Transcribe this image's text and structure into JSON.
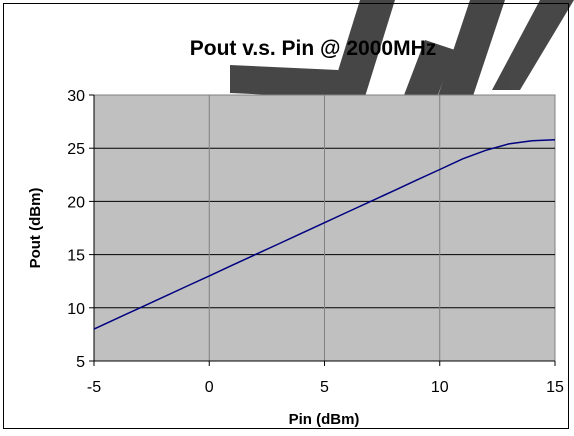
{
  "chart_data": {
    "type": "line",
    "title": "Pout v.s. Pin @ 2000MHz",
    "xlabel": "Pin (dBm)",
    "ylabel": "Pout (dBm)",
    "xlim": [
      -5,
      15
    ],
    "ylim": [
      5,
      30
    ],
    "x_ticks": [
      -5,
      0,
      5,
      10,
      15
    ],
    "y_ticks": [
      5,
      10,
      15,
      20,
      25,
      30
    ],
    "x_tick_labels": [
      "-5",
      "0",
      "5",
      "10",
      "15"
    ],
    "y_tick_labels": [
      "5",
      "10",
      "15",
      "20",
      "25",
      "30"
    ],
    "grid": true,
    "legend": "none",
    "series": [
      {
        "x": [
          -5,
          -4,
          -3,
          -2,
          -1,
          0,
          1,
          2,
          3,
          4,
          5,
          6,
          7,
          8,
          9,
          10,
          11,
          12,
          13,
          14,
          15
        ],
        "y": [
          8,
          9,
          10,
          11,
          12,
          13,
          14,
          15,
          16,
          17,
          18,
          19,
          20,
          21,
          22,
          23,
          24,
          24.8,
          25.4,
          25.7,
          25.8
        ]
      }
    ],
    "colors": {
      "plot_background": "#c0c0c0",
      "grid": "#000000",
      "line": "#000080"
    }
  },
  "watermark": {
    "text": "苏州"
  }
}
